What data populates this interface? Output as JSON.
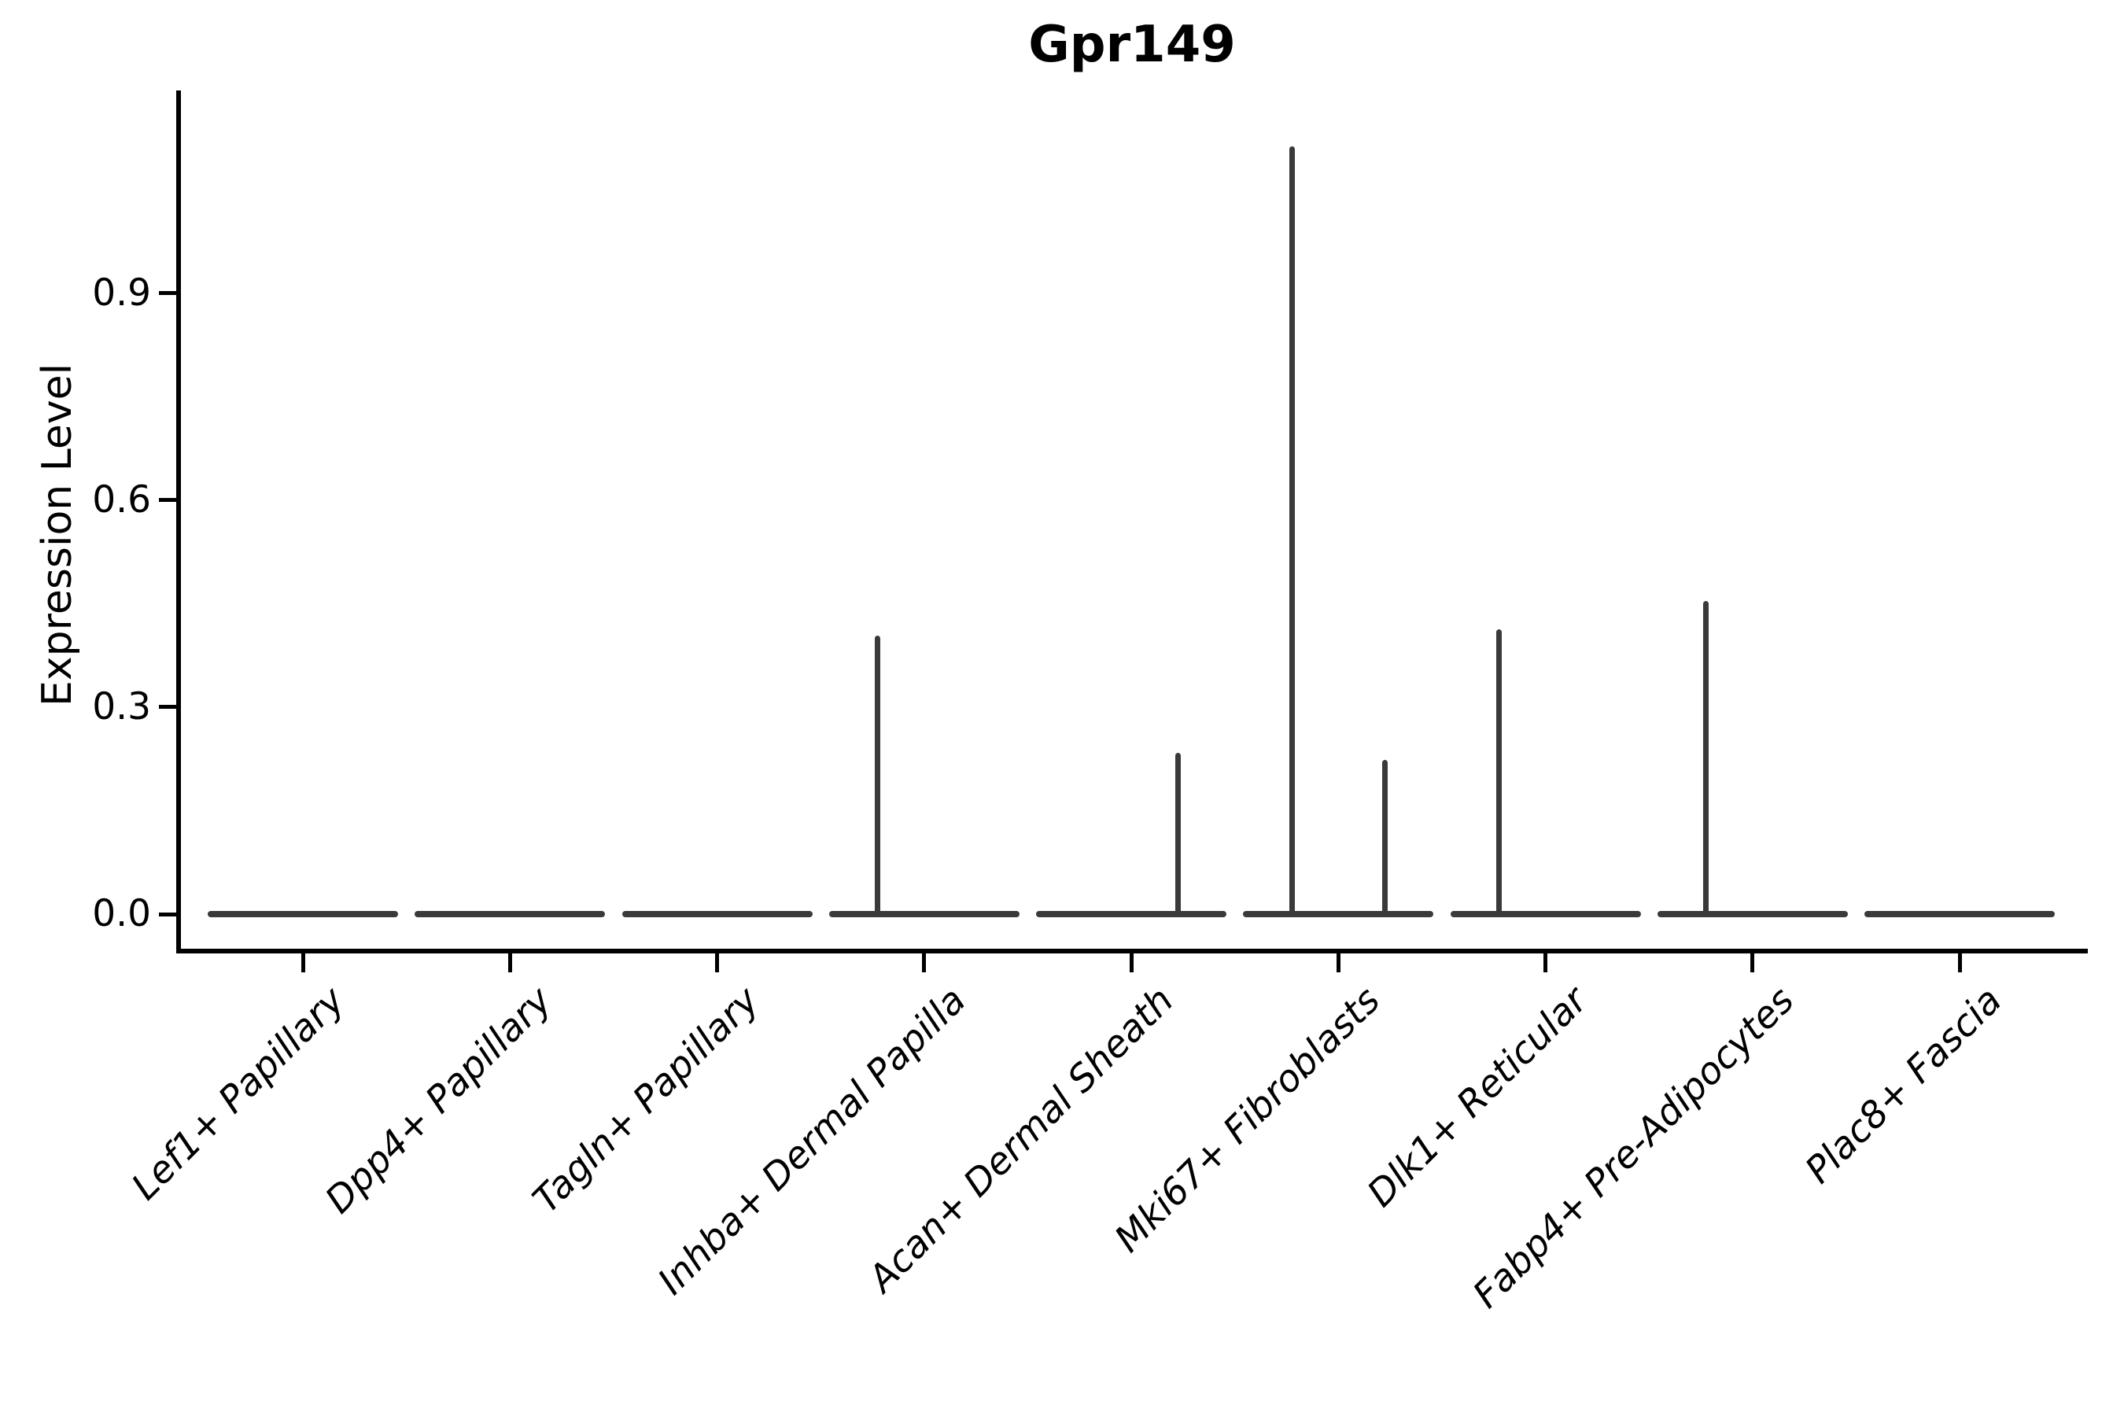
{
  "title": "Gpr149",
  "y_axis": {
    "label": "Expression Level",
    "tick_labels": [
      "0.0",
      "0.3",
      "0.6",
      "0.9"
    ]
  },
  "chart_data": {
    "type": "violin",
    "title": "Gpr149",
    "xlabel": "",
    "ylabel": "Expression Level",
    "ylim": [
      0,
      1.19
    ],
    "yticks": [
      0.0,
      0.3,
      0.6,
      0.9
    ],
    "grid": false,
    "legend": null,
    "categories": [
      "Lef1+ Papillary",
      "Dpp4+ Papillary",
      "Tagln+ Papillary",
      "Inhba+ Dermal Papilla",
      "Acan+ Dermal Sheath",
      "Mki67+ Fibroblasts",
      "Dlk1+ Reticular",
      "Fabp4+ Pre-Adipocytes",
      "Plac8+ Fascia"
    ],
    "series": [
      {
        "category": "Lef1+ Papillary",
        "base_value": 0.0,
        "spikes": []
      },
      {
        "category": "Dpp4+ Papillary",
        "base_value": 0.0,
        "spikes": []
      },
      {
        "category": "Tagln+ Papillary",
        "base_value": 0.0,
        "spikes": []
      },
      {
        "category": "Inhba+ Dermal Papilla",
        "base_value": 0.0,
        "spikes": [
          {
            "side": "left",
            "max": 0.4
          }
        ]
      },
      {
        "category": "Acan+ Dermal Sheath",
        "base_value": 0.0,
        "spikes": [
          {
            "side": "right",
            "max": 0.23
          }
        ]
      },
      {
        "category": "Mki67+ Fibroblasts",
        "base_value": 0.0,
        "spikes": [
          {
            "side": "left",
            "max": 1.11
          },
          {
            "side": "right",
            "max": 0.22
          }
        ]
      },
      {
        "category": "Dlk1+ Reticular",
        "base_value": 0.0,
        "spikes": [
          {
            "side": "left",
            "max": 0.41
          }
        ]
      },
      {
        "category": "Fabp4+ Pre-Adipocytes",
        "base_value": 0.0,
        "spikes": [
          {
            "side": "left",
            "max": 0.45
          }
        ]
      },
      {
        "category": "Plac8+ Fascia",
        "base_value": 0.0,
        "spikes": []
      }
    ],
    "colors": {
      "violin_stroke": "#3a3a3a",
      "axis": "#000000",
      "text": "#000000",
      "background": "#ffffff"
    }
  }
}
